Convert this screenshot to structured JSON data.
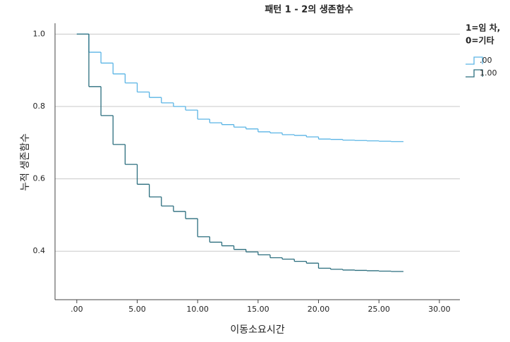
{
  "chart_data": {
    "type": "step",
    "title": "패턴 1 - 2의 생존함수",
    "x_label": "이동소요시간",
    "y_label": "누적 생존함수",
    "legend_title": [
      "1=임 차,",
      "0=기타"
    ],
    "x": [
      0,
      1,
      2,
      3,
      4,
      5,
      6,
      7,
      8,
      9,
      10,
      11,
      12,
      13,
      14,
      15,
      16,
      17,
      18,
      19,
      20,
      21,
      22,
      23,
      24,
      25,
      26,
      27
    ],
    "series": [
      {
        "name": ".00",
        "color": "#5ab4e5",
        "values": [
          1.0,
          0.95,
          0.92,
          0.89,
          0.865,
          0.84,
          0.825,
          0.81,
          0.8,
          0.79,
          0.765,
          0.755,
          0.75,
          0.743,
          0.738,
          0.73,
          0.727,
          0.722,
          0.72,
          0.716,
          0.71,
          0.709,
          0.707,
          0.706,
          0.705,
          0.704,
          0.703,
          0.703
        ]
      },
      {
        "name": "1.00",
        "color": "#2b6e7e",
        "values": [
          1.0,
          0.855,
          0.775,
          0.695,
          0.64,
          0.585,
          0.55,
          0.525,
          0.51,
          0.49,
          0.44,
          0.425,
          0.415,
          0.405,
          0.398,
          0.39,
          0.382,
          0.378,
          0.372,
          0.367,
          0.353,
          0.35,
          0.348,
          0.347,
          0.346,
          0.345,
          0.344,
          0.344
        ]
      }
    ],
    "xlim": [
      -1.8,
      31.7
    ],
    "ylim": [
      0.266,
      1.03
    ],
    "xticks": [
      {
        "value": 0,
        "label": ".00"
      },
      {
        "value": 5,
        "label": "5.00"
      },
      {
        "value": 10,
        "label": "10.00"
      },
      {
        "value": 15,
        "label": "15.00"
      },
      {
        "value": 20,
        "label": "20.00"
      },
      {
        "value": 25,
        "label": "25.00"
      },
      {
        "value": 30,
        "label": "30.00"
      }
    ],
    "yticks": [
      0.4,
      0.6,
      0.8,
      {
        "value": 1,
        "label": "1.0"
      }
    ],
    "grid": true
  }
}
